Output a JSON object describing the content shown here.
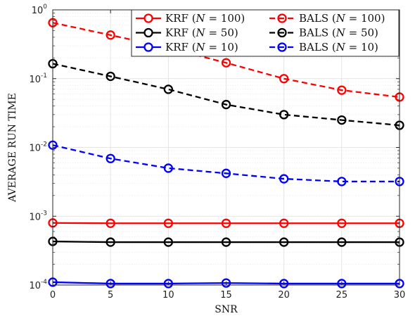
{
  "chart_data": {
    "type": "line",
    "xlabel": "SNR",
    "ylabel": "AVERAGE RUN TIME",
    "x": [
      0,
      5,
      10,
      15,
      20,
      25,
      30
    ],
    "xlim": [
      0,
      30
    ],
    "ylim": [
      0.0001,
      1
    ],
    "yscale": "log",
    "xticks": [
      "0",
      "5",
      "10",
      "15",
      "20",
      "25",
      "30"
    ],
    "yticks": [
      {
        "base": "10",
        "exp": "-4"
      },
      {
        "base": "10",
        "exp": "-3"
      },
      {
        "base": "10",
        "exp": "-2"
      },
      {
        "base": "10",
        "exp": "-1"
      },
      {
        "base": "10",
        "exp": "0"
      }
    ],
    "grid": true,
    "legend_position": "top-right",
    "series": [
      {
        "name": "KRF (N = 100)",
        "method": "KRF",
        "param": "N",
        "n": "100",
        "color": "#ff0000",
        "dash": "solid",
        "values": [
          0.0008,
          0.00079,
          0.00079,
          0.00079,
          0.00079,
          0.00079,
          0.00079
        ]
      },
      {
        "name": "BALS (N = 100)",
        "method": "BALS",
        "param": "N",
        "n": "100",
        "color": "#ff0000",
        "dash": "dashed",
        "values": [
          0.65,
          0.43,
          0.28,
          0.17,
          0.1,
          0.068,
          0.054
        ]
      },
      {
        "name": "KRF (N = 50)",
        "method": "KRF",
        "param": "N",
        "n": "50",
        "color": "#000000",
        "dash": "solid",
        "values": [
          0.00043,
          0.00042,
          0.00042,
          0.00042,
          0.00042,
          0.00042,
          0.00042
        ]
      },
      {
        "name": "BALS (N = 50)",
        "method": "BALS",
        "param": "N",
        "n": "50",
        "color": "#000000",
        "dash": "dashed",
        "values": [
          0.165,
          0.108,
          0.07,
          0.042,
          0.03,
          0.025,
          0.021
        ]
      },
      {
        "name": "KRF (N = 10)",
        "method": "KRF",
        "param": "N",
        "n": "10",
        "color": "#0000ff",
        "dash": "solid",
        "values": [
          0.00011,
          0.000105,
          0.000105,
          0.000107,
          0.000105,
          0.000105,
          0.000105
        ]
      },
      {
        "name": "BALS (N = 10)",
        "method": "BALS",
        "param": "N",
        "n": "10",
        "color": "#0000ff",
        "dash": "dashed",
        "values": [
          0.0108,
          0.0069,
          0.005,
          0.0042,
          0.0035,
          0.0032,
          0.0032
        ]
      }
    ]
  }
}
